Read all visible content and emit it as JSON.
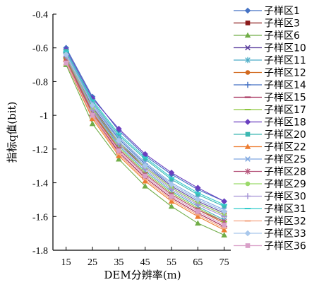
{
  "chart_data": {
    "type": "line",
    "xlabel": "DEM分辨率(m)",
    "ylabel": "指标q值(bit)",
    "x": [
      15,
      25,
      35,
      45,
      55,
      65,
      75
    ],
    "x_ticks": [
      15,
      25,
      35,
      45,
      55,
      65,
      75
    ],
    "x_tick_labels": [
      "15",
      "25",
      "35",
      "45",
      "55",
      "65",
      "75"
    ],
    "xlim": [
      10,
      77.5
    ],
    "ylim": [
      -1.8,
      -0.4
    ],
    "y_ticks": [
      -0.4,
      -0.6,
      -0.8,
      -1,
      -1.2,
      -1.4,
      -1.6,
      -1.8
    ],
    "y_tick_labels": [
      "-0.4",
      "-0.6",
      "-0.8",
      "-1",
      "-1.2",
      "-1.4",
      "-1.6",
      "-1.8"
    ],
    "grid": false,
    "legend_position": "right",
    "series": [
      {
        "name": "子样区1",
        "color": "#4472C4",
        "marker": "diamond",
        "values": [
          -0.6,
          -0.89,
          -1.09,
          -1.24,
          -1.35,
          -1.44,
          -1.51
        ]
      },
      {
        "name": "子样区3",
        "color": "#8B1A1A",
        "marker": "square",
        "values": [
          -0.66,
          -0.96,
          -1.17,
          -1.31,
          -1.43,
          -1.52,
          -1.59
        ]
      },
      {
        "name": "子样区6",
        "color": "#70AD47",
        "marker": "triangle",
        "values": [
          -0.7,
          -1.05,
          -1.26,
          -1.42,
          -1.54,
          -1.64,
          -1.71
        ]
      },
      {
        "name": "子样区10",
        "color": "#5B3F9E",
        "marker": "x",
        "values": [
          -0.64,
          -0.95,
          -1.16,
          -1.3,
          -1.42,
          -1.51,
          -1.58
        ]
      },
      {
        "name": "子样区11",
        "color": "#4BACC6",
        "marker": "star",
        "values": [
          -0.65,
          -0.97,
          -1.18,
          -1.33,
          -1.45,
          -1.54,
          -1.62
        ]
      },
      {
        "name": "子样区12",
        "color": "#D2691E",
        "marker": "circle",
        "values": [
          -0.67,
          -0.99,
          -1.2,
          -1.35,
          -1.47,
          -1.56,
          -1.64
        ]
      },
      {
        "name": "子样区14",
        "color": "#4472C4",
        "marker": "plus",
        "values": [
          -0.63,
          -0.94,
          -1.14,
          -1.29,
          -1.41,
          -1.5,
          -1.57
        ]
      },
      {
        "name": "子样区15",
        "color": "#A0204F",
        "marker": "dash",
        "values": [
          -0.68,
          -1.0,
          -1.22,
          -1.37,
          -1.49,
          -1.58,
          -1.66
        ]
      },
      {
        "name": "子样区17",
        "color": "#8DC63F",
        "marker": "dash",
        "values": [
          -0.66,
          -0.98,
          -1.19,
          -1.34,
          -1.46,
          -1.55,
          -1.63
        ]
      },
      {
        "name": "子样区18",
        "color": "#6A3FBF",
        "marker": "diamond",
        "values": [
          -0.61,
          -0.9,
          -1.08,
          -1.23,
          -1.34,
          -1.43,
          -1.51
        ]
      },
      {
        "name": "子样区20",
        "color": "#3CB8B2",
        "marker": "square",
        "values": [
          -0.62,
          -0.92,
          -1.12,
          -1.26,
          -1.38,
          -1.47,
          -1.54
        ]
      },
      {
        "name": "子样区22",
        "color": "#ED7D31",
        "marker": "triangle",
        "values": [
          -0.69,
          -1.02,
          -1.24,
          -1.39,
          -1.51,
          -1.6,
          -1.68
        ]
      },
      {
        "name": "子样区25",
        "color": "#7FA7E0",
        "marker": "x",
        "values": [
          -0.63,
          -0.93,
          -1.13,
          -1.28,
          -1.4,
          -1.49,
          -1.56
        ]
      },
      {
        "name": "子样区28",
        "color": "#B5547A",
        "marker": "star",
        "values": [
          -0.67,
          -0.98,
          -1.2,
          -1.35,
          -1.47,
          -1.56,
          -1.63
        ]
      },
      {
        "name": "子样区29",
        "color": "#9BD96A",
        "marker": "circle",
        "values": [
          -0.64,
          -0.96,
          -1.16,
          -1.31,
          -1.43,
          -1.52,
          -1.59
        ]
      },
      {
        "name": "子样区30",
        "color": "#A593D6",
        "marker": "plus",
        "values": [
          -0.65,
          -0.97,
          -1.17,
          -1.32,
          -1.44,
          -1.53,
          -1.6
        ]
      },
      {
        "name": "子样区31",
        "color": "#33CCCC",
        "marker": "dash",
        "values": [
          -0.62,
          -0.91,
          -1.11,
          -1.25,
          -1.37,
          -1.46,
          -1.53
        ]
      },
      {
        "name": "子样区32",
        "color": "#F4A582",
        "marker": "dash",
        "values": [
          -0.68,
          -1.01,
          -1.23,
          -1.38,
          -1.5,
          -1.59,
          -1.67
        ]
      },
      {
        "name": "子样区33",
        "color": "#A9C8EC",
        "marker": "diamond",
        "values": [
          -0.64,
          -0.94,
          -1.15,
          -1.3,
          -1.41,
          -1.5,
          -1.57
        ]
      },
      {
        "name": "子样区36",
        "color": "#D9A0C8",
        "marker": "square",
        "values": [
          -0.69,
          -1.0,
          -1.21,
          -1.36,
          -1.48,
          -1.57,
          -1.65
        ]
      }
    ]
  }
}
